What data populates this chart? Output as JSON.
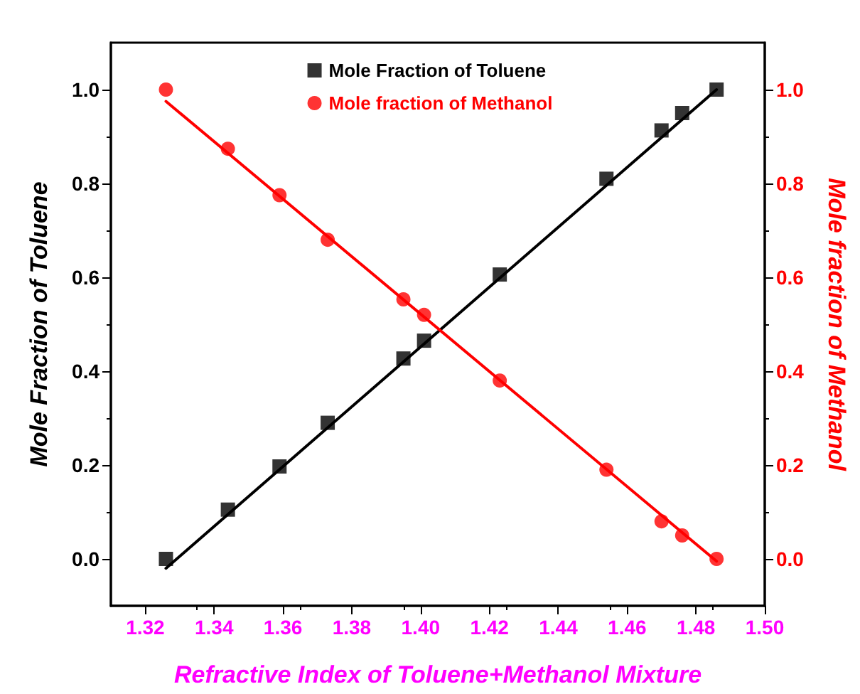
{
  "chart_data": {
    "type": "scatter",
    "xlabel": "Refractive Index of Toluene+Methanol Mixture",
    "ylabel": "Mole Fraction of Toluene",
    "y2label": "Mole fraction of Methanol",
    "xlim": [
      1.31,
      1.5
    ],
    "xticks": [
      {
        "value": 1.32,
        "label": "1.32"
      },
      {
        "value": 1.34,
        "label": "1.34"
      },
      {
        "value": 1.36,
        "label": "1.36"
      },
      {
        "value": 1.38,
        "label": "1.38"
      },
      {
        "value": 1.4,
        "label": "1.40"
      },
      {
        "value": 1.42,
        "label": "1.42"
      },
      {
        "value": 1.44,
        "label": "1.44"
      },
      {
        "value": 1.46,
        "label": "1.46"
      },
      {
        "value": 1.48,
        "label": "1.48"
      },
      {
        "value": 1.5,
        "label": "1.50"
      }
    ],
    "ylim": [
      -0.1,
      1.1
    ],
    "yticks": [
      {
        "value": 0,
        "label": "0.0"
      },
      {
        "value": 0.2,
        "label": "0.2"
      },
      {
        "value": 0.4,
        "label": "0.4"
      },
      {
        "value": 0.6,
        "label": "0.6"
      },
      {
        "value": 0.8,
        "label": "0.8"
      },
      {
        "value": 1,
        "label": "1.0"
      }
    ],
    "y2lim": [
      -0.1,
      1.1
    ],
    "y2ticks": [
      {
        "value": 0,
        "label": "0.0"
      },
      {
        "value": 0.2,
        "label": "0.2"
      },
      {
        "value": 0.4,
        "label": "0.4"
      },
      {
        "value": 0.6,
        "label": "0.6"
      },
      {
        "value": 0.8,
        "label": "0.8"
      },
      {
        "value": 1,
        "label": "1.0"
      }
    ],
    "grid": false,
    "legend": "top",
    "series": [
      {
        "name": "Mole Fraction of Toluene",
        "marker": "square",
        "color": "#000000",
        "x": [
          1.326,
          1.344,
          1.359,
          1.373,
          1.395,
          1.401,
          1.423,
          1.454,
          1.47,
          1.476,
          1.486
        ],
        "values": [
          0,
          0.105,
          0.197,
          0.29,
          0.427,
          0.465,
          0.606,
          0.81,
          0.913,
          0.95,
          1.0
        ]
      },
      {
        "name": "Mole fraction of Methanol",
        "marker": "circle",
        "color": "#ff0000",
        "axis": "y2",
        "x": [
          1.326,
          1.344,
          1.359,
          1.373,
          1.395,
          1.401,
          1.423,
          1.454,
          1.47,
          1.476,
          1.486
        ],
        "values": [
          1.0,
          0.874,
          0.775,
          0.68,
          0.553,
          0.52,
          0.38,
          0.19,
          0.08,
          0.05,
          0
        ]
      },
      {
        "type": "line",
        "marker": "none",
        "color": "#000000",
        "x": [
          1.326,
          1.486
        ],
        "values": [
          -0.02,
          1.0
        ]
      },
      {
        "type": "line",
        "marker": "none",
        "color": "#ff0000",
        "axis": "y2",
        "x": [
          1.326,
          1.486
        ],
        "values": [
          0.975,
          -0.005
        ]
      }
    ]
  }
}
